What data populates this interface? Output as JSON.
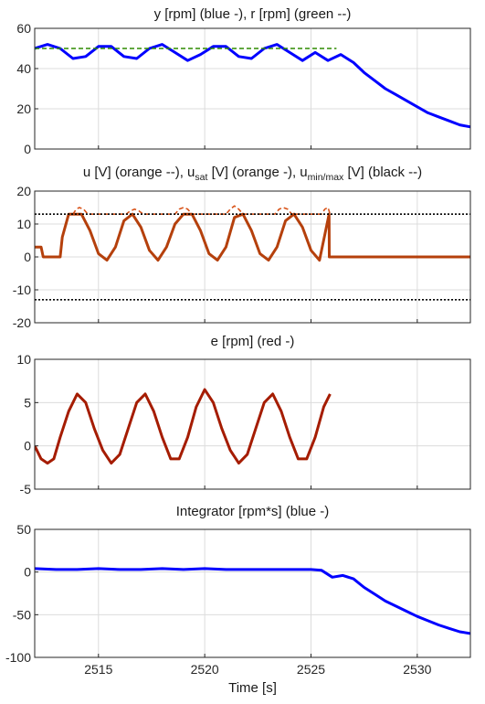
{
  "chart_data": [
    {
      "type": "line",
      "title": "y [rpm] (blue -), r [rpm] (green --)",
      "xlim": [
        2512,
        2532.5
      ],
      "ylim": [
        0,
        60
      ],
      "x_ticks": [
        2515,
        2520,
        2525,
        2530
      ],
      "y_ticks": [
        0,
        20,
        40,
        60
      ],
      "grid": true,
      "series": [
        {
          "name": "y [rpm]",
          "color": "#0000ff",
          "style": "solid",
          "x": [
            2512,
            2512.6,
            2513.2,
            2513.8,
            2514.4,
            2515.0,
            2515.6,
            2516.2,
            2516.8,
            2517.4,
            2518.0,
            2518.6,
            2519.2,
            2519.8,
            2520.4,
            2521.0,
            2521.6,
            2522.2,
            2522.8,
            2523.4,
            2524.0,
            2524.6,
            2525.2,
            2525.8,
            2526.4,
            2527.0,
            2527.5,
            2528,
            2528.5,
            2529,
            2529.5,
            2530,
            2530.5,
            2531,
            2531.5,
            2532,
            2532.5
          ],
          "y": [
            50,
            52,
            50,
            45,
            46,
            51,
            51,
            46,
            45,
            50,
            52,
            48,
            44,
            47,
            51,
            51,
            46,
            45,
            50,
            52,
            48,
            44,
            48,
            44,
            47,
            43,
            38,
            34,
            30,
            27,
            24,
            21,
            18,
            16,
            14,
            12,
            11
          ]
        },
        {
          "name": "r [rpm]",
          "color": "#2e8b00",
          "style": "dashed",
          "x": [
            2512,
            2526.2
          ],
          "y": [
            50,
            50
          ]
        }
      ]
    },
    {
      "type": "line",
      "title_parts": [
        "u [V] (orange --), u",
        "sat",
        " [V] (orange -), u",
        "min/max",
        " [V] (black --)"
      ],
      "xlim": [
        2512,
        2532.5
      ],
      "ylim": [
        -20,
        20
      ],
      "x_ticks": [
        2515,
        2520,
        2525,
        2530
      ],
      "y_ticks": [
        -20,
        -10,
        0,
        10,
        20
      ],
      "grid": true,
      "series": [
        {
          "name": "u [V]",
          "color": "#d9541a",
          "style": "dashed",
          "x": [
            2513.8,
            2513.95,
            2514.1,
            2514.3,
            2514.5,
            2516.3,
            2516.5,
            2516.7,
            2516.9,
            2517.1,
            2518.6,
            2518.8,
            2519.0,
            2519.2,
            2519.4,
            2521.0,
            2521.2,
            2521.4,
            2521.6,
            2521.8,
            2523.3,
            2523.5,
            2523.7,
            2523.9,
            2524.1,
            2525.5,
            2525.65,
            2525.8,
            2525.9
          ],
          "y": [
            13,
            14.5,
            15,
            14.5,
            13,
            13,
            14,
            14.5,
            14,
            13,
            13,
            14.5,
            15,
            14.5,
            13,
            13,
            14.5,
            15.5,
            14.5,
            13,
            13,
            14.5,
            15,
            14.5,
            13,
            13,
            14.5,
            15,
            13
          ]
        },
        {
          "name": "u_sat [V]",
          "color": "#b5400c",
          "style": "solid",
          "x": [
            2512,
            2512.3,
            2512.4,
            2513.2,
            2513.3,
            2513.6,
            2513.9,
            2514.2,
            2514.6,
            2515.0,
            2515.4,
            2515.8,
            2516.2,
            2516.6,
            2517.0,
            2517.4,
            2517.8,
            2518.2,
            2518.6,
            2519.0,
            2519.4,
            2519.8,
            2520.2,
            2520.6,
            2521.0,
            2521.4,
            2521.8,
            2522.2,
            2522.6,
            2523.0,
            2523.4,
            2523.8,
            2524.2,
            2524.6,
            2525.0,
            2525.4,
            2525.85,
            2525.86,
            2532.5
          ],
          "y": [
            3,
            3,
            0,
            0,
            6,
            13,
            13,
            13,
            8,
            1,
            -1,
            3,
            11,
            13,
            9,
            2,
            -1,
            3,
            10,
            13,
            13,
            8,
            1,
            -1,
            3,
            12,
            13,
            8,
            1,
            -1,
            3,
            11,
            13,
            9,
            2,
            -1,
            13,
            0,
            0
          ]
        },
        {
          "name": "u_max [V]",
          "color": "#000000",
          "style": "dotted",
          "x": [
            2512,
            2532.5
          ],
          "y": [
            13,
            13
          ]
        },
        {
          "name": "u_min [V]",
          "color": "#000000",
          "style": "dotted",
          "x": [
            2512,
            2532.5
          ],
          "y": [
            -13,
            -13
          ]
        }
      ]
    },
    {
      "type": "line",
      "title": "e [rpm] (red -)",
      "xlim": [
        2512,
        2532.5
      ],
      "ylim": [
        -5,
        10
      ],
      "x_ticks": [
        2515,
        2520,
        2525,
        2530
      ],
      "y_ticks": [
        -5,
        0,
        5,
        10
      ],
      "grid": true,
      "series": [
        {
          "name": "e [rpm]",
          "color": "#a51c00",
          "style": "solid",
          "x": [
            2512,
            2512.3,
            2512.6,
            2512.9,
            2513.2,
            2513.6,
            2514.0,
            2514.4,
            2514.8,
            2515.2,
            2515.6,
            2516.0,
            2516.4,
            2516.8,
            2517.2,
            2517.6,
            2518.0,
            2518.4,
            2518.8,
            2519.2,
            2519.6,
            2520.0,
            2520.4,
            2520.8,
            2521.2,
            2521.6,
            2522.0,
            2522.4,
            2522.8,
            2523.2,
            2523.6,
            2524.0,
            2524.4,
            2524.8,
            2525.2,
            2525.6,
            2525.9
          ],
          "y": [
            0,
            -1.5,
            -2,
            -1.5,
            1,
            4,
            6,
            5,
            2,
            -0.5,
            -2,
            -1,
            2,
            5,
            6,
            4,
            1,
            -1.5,
            -1.5,
            1,
            4.5,
            6.5,
            5,
            2,
            -0.5,
            -2,
            -1,
            2,
            5,
            6,
            4,
            1,
            -1.5,
            -1.5,
            1,
            4.5,
            6
          ]
        }
      ]
    },
    {
      "type": "line",
      "title": "Integrator [rpm*s] (blue -)",
      "xlabel": "Time [s]",
      "xlim": [
        2512,
        2532.5
      ],
      "ylim": [
        -100,
        50
      ],
      "x_ticks": [
        2515,
        2520,
        2525,
        2530
      ],
      "y_ticks": [
        -100,
        -50,
        0,
        50
      ],
      "grid": true,
      "series": [
        {
          "name": "Integrator [rpm*s]",
          "color": "#0000ff",
          "style": "solid",
          "x": [
            2512,
            2513,
            2514,
            2515,
            2516,
            2517,
            2518,
            2519,
            2520,
            2521,
            2522,
            2523,
            2524,
            2525,
            2525.5,
            2526,
            2526.5,
            2527,
            2527.5,
            2528,
            2528.5,
            2529,
            2529.5,
            2530,
            2530.5,
            2531,
            2531.5,
            2532,
            2532.5
          ],
          "y": [
            4,
            3,
            3,
            4,
            3,
            3,
            4,
            3,
            4,
            3,
            3,
            3,
            3,
            3,
            2,
            -6,
            -4,
            -8,
            -18,
            -26,
            -34,
            -40,
            -46,
            -52,
            -57,
            -62,
            -66,
            -70,
            -72
          ]
        }
      ]
    }
  ]
}
